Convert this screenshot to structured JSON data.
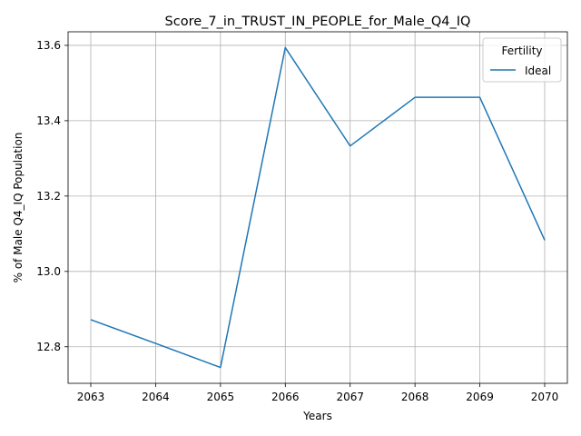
{
  "chart_data": {
    "type": "line",
    "title": "Score_7_in_TRUST_IN_PEOPLE_for_Male_Q4_IQ",
    "xlabel": "Years",
    "ylabel": "% of Male Q4_IQ Population",
    "x": [
      2063,
      2064,
      2065,
      2066,
      2067,
      2068,
      2069,
      2070
    ],
    "xticks": [
      "2063",
      "2064",
      "2065",
      "2066",
      "2067",
      "2068",
      "2069",
      "2070"
    ],
    "yticks": [
      "12.8",
      "13.0",
      "13.2",
      "13.4",
      "13.6"
    ],
    "ytick_values": [
      12.8,
      13.0,
      13.2,
      13.4,
      13.6
    ],
    "xlim": [
      2062.65,
      2070.35
    ],
    "ylim": [
      12.703,
      13.636
    ],
    "grid": true,
    "legend": {
      "title": "Fertility",
      "placement": "top-right"
    },
    "series": [
      {
        "name": "Ideal",
        "color": "#1f77b4",
        "values": [
          12.872,
          12.809,
          12.745,
          13.594,
          13.333,
          13.462,
          13.462,
          13.083
        ]
      }
    ]
  }
}
